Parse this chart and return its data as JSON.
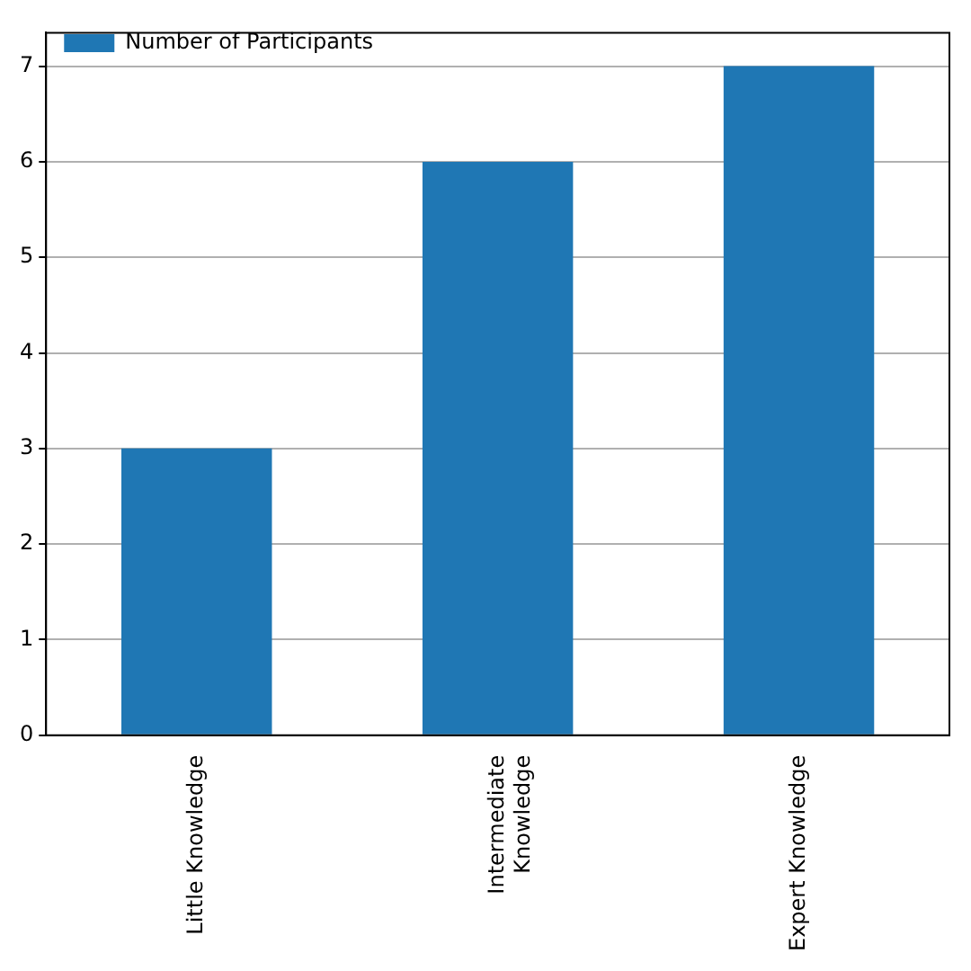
{
  "chart_data": {
    "type": "bar",
    "categories": [
      "Little Knowledge",
      "Intermediate\nKnowledge",
      "Expert Knowledge"
    ],
    "series": [
      {
        "name": "Number of Participants",
        "color": "#1f77b4",
        "values": [
          3,
          6,
          7
        ]
      }
    ],
    "ylim": [
      0,
      7.35
    ],
    "yticks": [
      0,
      1,
      2,
      3,
      4,
      5,
      6,
      7
    ],
    "grid": "y",
    "legend": "top left"
  }
}
